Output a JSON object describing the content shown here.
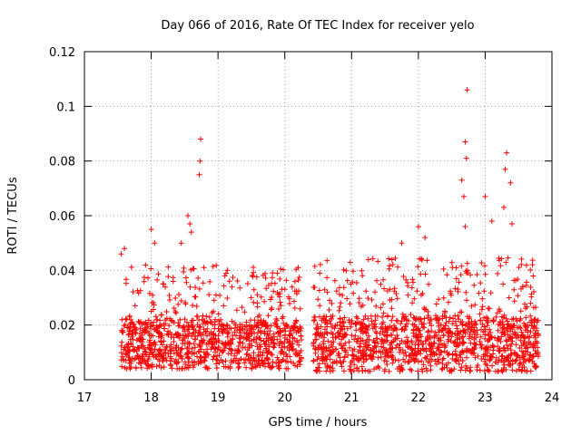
{
  "chart_data": {
    "type": "scatter",
    "title": "Day 066 of 2016, Rate Of TEC Index for receiver yelo",
    "xlabel": "GPS time / hours",
    "ylabel": "ROTI / TECUs",
    "xlim": [
      17,
      24
    ],
    "ylim": [
      0,
      0.12
    ],
    "x_ticks": [
      "17",
      "18",
      "19",
      "20",
      "21",
      "22",
      "23",
      "24"
    ],
    "y_ticks": [
      "0",
      "0.02",
      "0.04",
      "0.06",
      "0.08",
      "0.1",
      "0.12"
    ],
    "grid": true,
    "marker": "+",
    "color": "#ff0000",
    "notable_points": [
      {
        "x": 17.55,
        "y": 0.046
      },
      {
        "x": 17.6,
        "y": 0.048
      },
      {
        "x": 18.0,
        "y": 0.055
      },
      {
        "x": 18.05,
        "y": 0.05
      },
      {
        "x": 18.45,
        "y": 0.05
      },
      {
        "x": 18.55,
        "y": 0.06
      },
      {
        "x": 18.58,
        "y": 0.057
      },
      {
        "x": 18.6,
        "y": 0.054
      },
      {
        "x": 18.72,
        "y": 0.075
      },
      {
        "x": 18.73,
        "y": 0.08
      },
      {
        "x": 18.74,
        "y": 0.088
      },
      {
        "x": 20.2,
        "y": 0.041
      },
      {
        "x": 21.75,
        "y": 0.05
      },
      {
        "x": 22.0,
        "y": 0.056
      },
      {
        "x": 22.1,
        "y": 0.052
      },
      {
        "x": 22.65,
        "y": 0.073
      },
      {
        "x": 22.68,
        "y": 0.067
      },
      {
        "x": 22.7,
        "y": 0.087
      },
      {
        "x": 22.72,
        "y": 0.081
      },
      {
        "x": 22.73,
        "y": 0.106
      },
      {
        "x": 22.7,
        "y": 0.056
      },
      {
        "x": 23.0,
        "y": 0.067
      },
      {
        "x": 23.1,
        "y": 0.058
      },
      {
        "x": 23.28,
        "y": 0.063
      },
      {
        "x": 23.3,
        "y": 0.077
      },
      {
        "x": 23.32,
        "y": 0.083
      },
      {
        "x": 23.38,
        "y": 0.072
      },
      {
        "x": 23.4,
        "y": 0.057
      }
    ],
    "bulk_segments": [
      {
        "x_start": 17.55,
        "x_end": 20.25,
        "typical": 0.014,
        "spread": 0.016,
        "min": 0.004,
        "max": 0.042
      },
      {
        "x_start": 20.42,
        "x_end": 23.8,
        "typical": 0.015,
        "spread": 0.017,
        "min": 0.003,
        "max": 0.045
      }
    ]
  }
}
